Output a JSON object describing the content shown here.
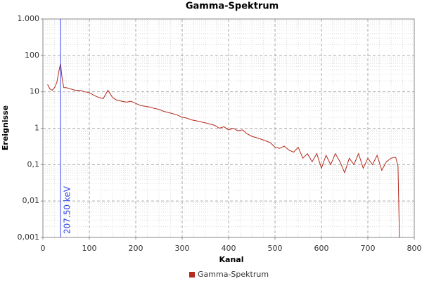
{
  "chart_data": {
    "type": "line",
    "title": "Gamma-Spektrum",
    "x_label": "Kanal",
    "y_label": "Ereignisse",
    "log_y": true,
    "grid": true,
    "legend": "bottom",
    "xlim": [
      0,
      800
    ],
    "xticks": [
      0,
      100,
      200,
      300,
      400,
      500,
      600,
      700,
      800
    ],
    "ylim": [
      0.001,
      1000
    ],
    "yticks": [
      {
        "value": 0.001,
        "label": "0,001"
      },
      {
        "value": 0.01,
        "label": "0,01"
      },
      {
        "value": 0.1,
        "label": "0,1"
      },
      1,
      10,
      100,
      {
        "value": 1000,
        "label": "1.000"
      }
    ],
    "marker": {
      "value": 38,
      "label": "207.50 keV",
      "color": "#3344ee"
    },
    "x": [
      10,
      15,
      20,
      25,
      30,
      35,
      38,
      41,
      45,
      50,
      60,
      70,
      80,
      90,
      100,
      110,
      120,
      130,
      140,
      150,
      160,
      170,
      180,
      190,
      200,
      210,
      220,
      230,
      240,
      250,
      260,
      270,
      280,
      290,
      300,
      310,
      320,
      330,
      340,
      350,
      360,
      370,
      380,
      390,
      400,
      410,
      420,
      430,
      440,
      450,
      460,
      470,
      480,
      490,
      500,
      510,
      520,
      530,
      540,
      550,
      560,
      570,
      580,
      590,
      600,
      610,
      620,
      630,
      640,
      650,
      660,
      670,
      680,
      690,
      700,
      710,
      720,
      730,
      740,
      750,
      760,
      765,
      768
    ],
    "series": [
      {
        "name": "Gamma-Spektrum",
        "color": "#b52a1c",
        "values": [
          16,
          12,
          11,
          13,
          18,
          40,
          60,
          25,
          13,
          13,
          12,
          11,
          11,
          10,
          9.5,
          8,
          7,
          6.5,
          11,
          7,
          5.8,
          5.5,
          5.2,
          5.5,
          4.8,
          4.2,
          4,
          3.8,
          3.5,
          3.3,
          2.9,
          2.7,
          2.5,
          2.3,
          2.0,
          1.9,
          1.7,
          1.6,
          1.5,
          1.4,
          1.3,
          1.2,
          1.0,
          1.1,
          0.9,
          1.0,
          0.85,
          0.9,
          0.7,
          0.6,
          0.55,
          0.5,
          0.45,
          0.4,
          0.3,
          0.28,
          0.32,
          0.25,
          0.22,
          0.3,
          0.15,
          0.2,
          0.12,
          0.2,
          0.08,
          0.18,
          0.1,
          0.2,
          0.12,
          0.06,
          0.15,
          0.1,
          0.2,
          0.08,
          0.15,
          0.1,
          0.18,
          0.07,
          0.12,
          0.15,
          0.16,
          0.09,
          0.001
        ]
      }
    ]
  }
}
